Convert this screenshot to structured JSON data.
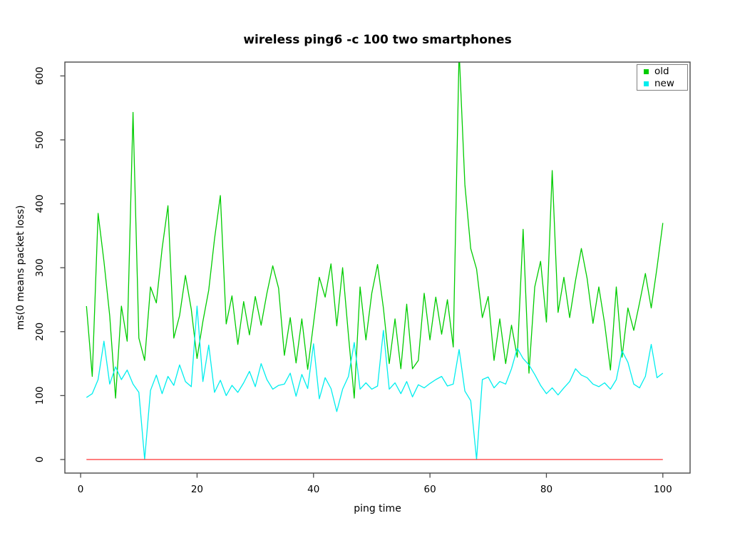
{
  "window": {
    "description": "Line chart figure comparing ping round-trip times of two smartphones"
  },
  "chart_data": {
    "type": "line",
    "title": "wireless ping6 -c 100 two smartphones",
    "xlabel": "ping time",
    "ylabel": "ms(0 means packet loss)",
    "x_ticks": [
      0,
      20,
      40,
      60,
      80,
      100
    ],
    "y_ticks": [
      0,
      100,
      200,
      300,
      400,
      500,
      600
    ],
    "xlim": [
      0,
      104
    ],
    "ylim": [
      0,
      622
    ],
    "grid": false,
    "legend_position": "top-right",
    "x_start": 1,
    "series": [
      {
        "name": "old",
        "color": "#00CC00",
        "values": [
          240,
          130,
          385,
          310,
          225,
          96,
          240,
          185,
          543,
          190,
          155,
          270,
          245,
          330,
          397,
          190,
          225,
          288,
          235,
          158,
          216,
          265,
          345,
          413,
          212,
          256,
          180,
          247,
          195,
          255,
          210,
          260,
          303,
          268,
          163,
          222,
          151,
          220,
          141,
          213,
          285,
          254,
          306,
          209,
          300,
          194,
          96,
          270,
          187,
          260,
          305,
          237,
          150,
          220,
          142,
          243,
          142,
          155,
          260,
          187,
          254,
          196,
          250,
          176,
          640,
          430,
          330,
          298,
          222,
          255,
          155,
          220,
          150,
          210,
          160,
          360,
          135,
          270,
          310,
          215,
          452,
          230,
          285,
          222,
          280,
          330,
          283,
          213,
          270,
          213,
          140,
          270,
          160,
          237,
          202,
          245,
          291,
          237,
          300,
          370
        ]
      },
      {
        "name": "new",
        "color": "#00EEEE",
        "values": [
          97,
          103,
          125,
          185,
          118,
          145,
          125,
          140,
          118,
          105,
          0,
          108,
          132,
          103,
          130,
          116,
          148,
          122,
          114,
          240,
          122,
          179,
          105,
          124,
          100,
          116,
          105,
          120,
          138,
          114,
          150,
          125,
          110,
          116,
          118,
          135,
          99,
          133,
          111,
          181,
          95,
          128,
          111,
          75,
          110,
          130,
          183,
          110,
          120,
          110,
          115,
          202,
          110,
          120,
          103,
          122,
          98,
          117,
          112,
          119,
          125,
          130,
          115,
          118,
          172,
          107,
          92,
          0,
          125,
          129,
          112,
          122,
          118,
          142,
          174,
          158,
          148,
          133,
          116,
          103,
          112,
          101,
          112,
          122,
          142,
          132,
          128,
          118,
          114,
          120,
          110,
          125,
          170,
          152,
          118,
          112,
          130,
          180,
          128,
          135
        ]
      }
    ],
    "baseline": {
      "value": 0,
      "color": "#FF3333",
      "meaning": "0 means packet loss"
    },
    "annotations": [
      "old series spike at ping 65 exceeds the y-axis range and is clipped by the top of the plot box",
      "new series drops to 0 (packet loss) at ping 11 and ping 68"
    ]
  },
  "legend": {
    "entries": [
      {
        "label": "old",
        "color": "#00CC00"
      },
      {
        "label": "new",
        "color": "#00EEEE"
      }
    ]
  },
  "style": {
    "frame_color": "#4a4a4a",
    "text_color": "#000000",
    "background": "#ffffff"
  }
}
